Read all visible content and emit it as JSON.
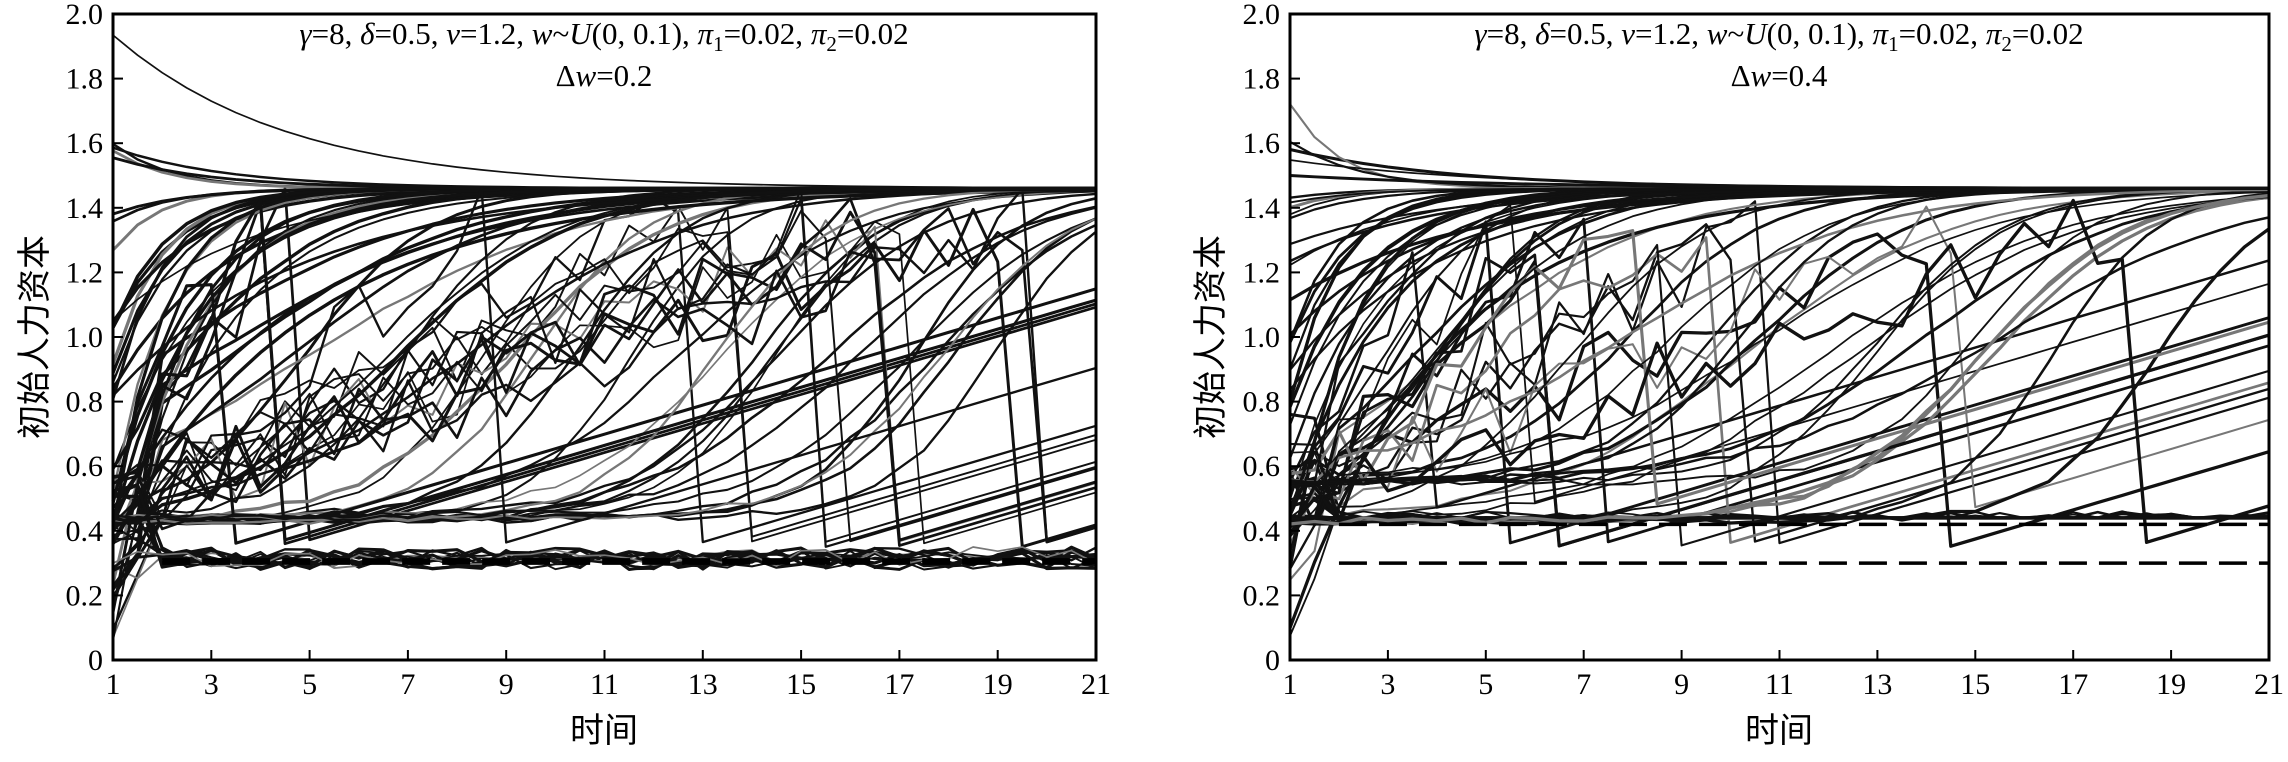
{
  "chart_data": [
    {
      "type": "line",
      "xlabel": "时间",
      "ylabel": "初始人力资本",
      "xlim": [
        1,
        21
      ],
      "ylim": [
        0,
        2.0
      ],
      "xticks": [
        "1",
        "3",
        "5",
        "7",
        "9",
        "11",
        "13",
        "15",
        "17",
        "19",
        "21"
      ],
      "yticks": [
        "0",
        "0.2",
        "0.4",
        "0.6",
        "0.8",
        "1.0",
        "1.2",
        "1.4",
        "1.6",
        "1.8",
        "2.0"
      ],
      "annotation": {
        "line1": [
          "γ",
          "=8, ",
          "δ",
          "=0.5, ",
          "v",
          "=1.2, ",
          "w",
          "~",
          "U",
          "(0, 0.1), ",
          "π",
          "1",
          "=0.02, ",
          "π",
          "2",
          "=0.02"
        ],
        "line2": [
          "Δ",
          "w",
          "=0.2"
        ]
      },
      "steady_state_high": 1.46,
      "steady_state_low": [
        0.31,
        0.3
      ],
      "dashed_levels": [
        0.31,
        0.3
      ],
      "series_count": 90,
      "grid": false
    },
    {
      "type": "line",
      "xlabel": "时间",
      "ylabel": "初始人力资本",
      "xlim": [
        1,
        21
      ],
      "ylim": [
        0,
        2.0
      ],
      "xticks": [
        "1",
        "3",
        "5",
        "7",
        "9",
        "11",
        "13",
        "15",
        "17",
        "19",
        "21"
      ],
      "yticks": [
        "0",
        "0.2",
        "0.4",
        "0.6",
        "0.8",
        "1.0",
        "1.2",
        "1.4",
        "1.6",
        "1.8",
        "2.0"
      ],
      "annotation": {
        "line1": [
          "γ",
          "=8, ",
          "δ",
          "=0.5, ",
          "v",
          "=1.2, ",
          "w",
          "~",
          "U",
          "(0, 0.1), ",
          "π",
          "1",
          "=0.02, ",
          "π",
          "2",
          "=0.02"
        ],
        "line2": [
          "Δ",
          "w",
          "=0.4"
        ]
      },
      "steady_state_high": 1.46,
      "steady_state_low": [
        0.42,
        0.3
      ],
      "dashed_levels": [
        0.42,
        0.3
      ],
      "series_count": 90,
      "grid": false
    }
  ]
}
